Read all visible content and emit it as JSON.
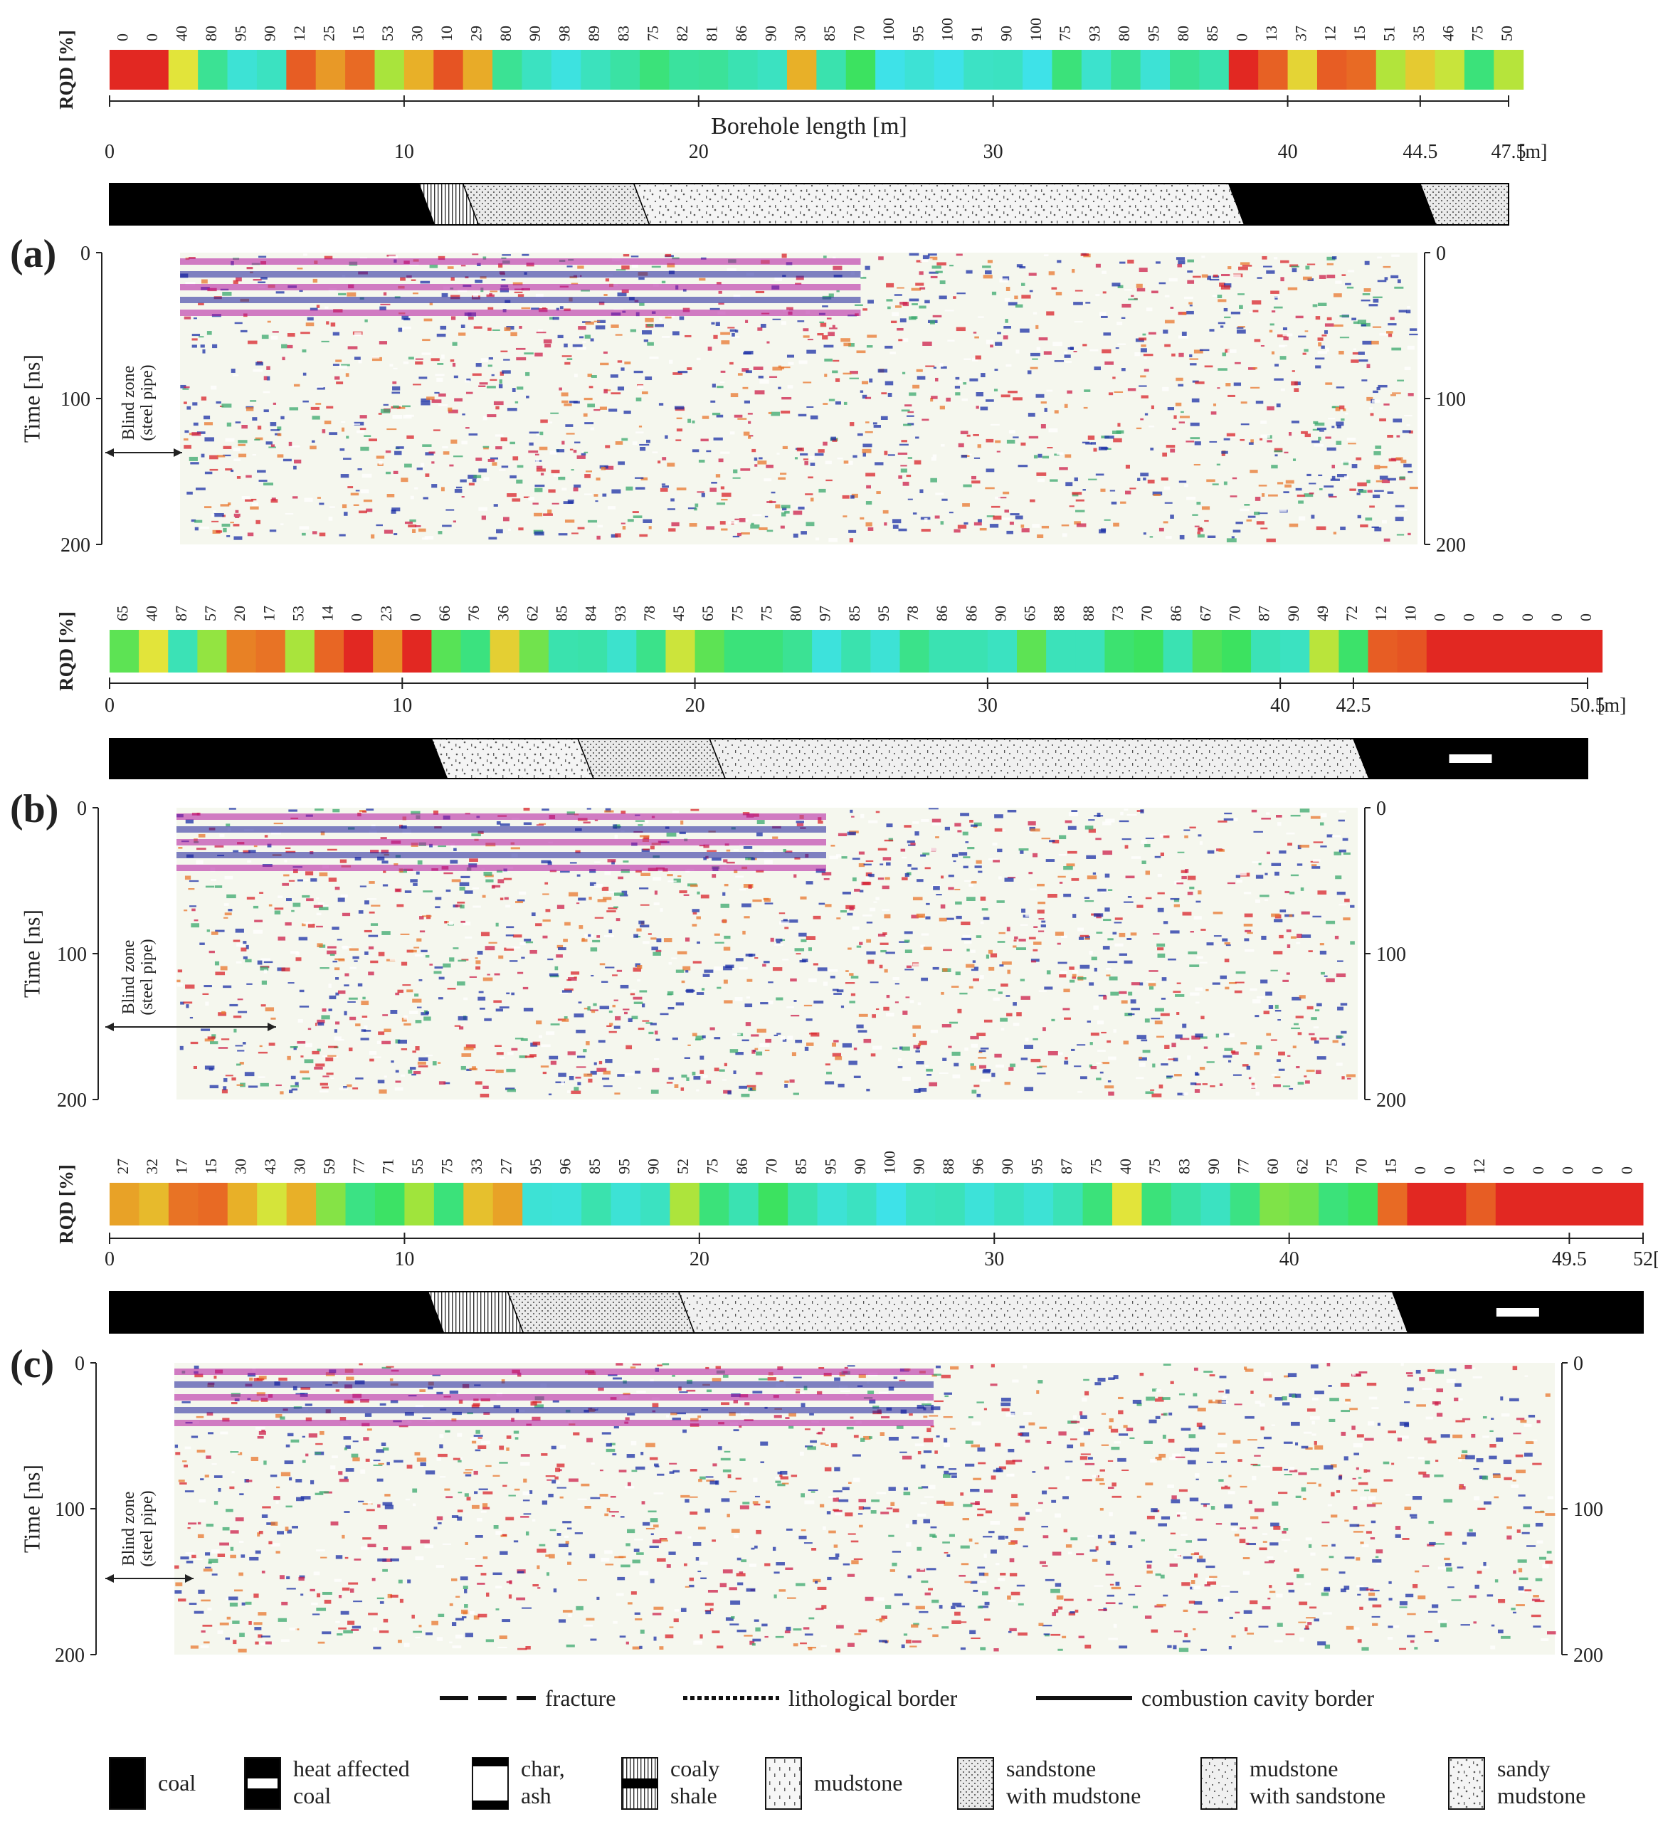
{
  "common": {
    "rqd_axis_label": "RQD [%]",
    "time_axis_label": "Time [ns]",
    "time_ticks": [
      "0",
      "100",
      "200"
    ],
    "blind_zone_line1": "Blind zone",
    "blind_zone_line2": "(steel pipe)",
    "length_unit": "[m]"
  },
  "panels": [
    {
      "id": "a",
      "label": "(a)",
      "length_axis_title": "Borehole length [m]",
      "length_end": 47.5,
      "length_ticks": [
        "0",
        "10",
        "20",
        "30",
        "40",
        "44.5",
        "47.5"
      ],
      "rqd": [
        0,
        0,
        40,
        80,
        95,
        90,
        12,
        25,
        15,
        53,
        30,
        10,
        29,
        80,
        90,
        98,
        89,
        83,
        75,
        82,
        81,
        86,
        90,
        30,
        85,
        70,
        100,
        95,
        100,
        91,
        90,
        100,
        75,
        93,
        80,
        95,
        80,
        85,
        0,
        13,
        37,
        12,
        15,
        51,
        35,
        46,
        75,
        50
      ],
      "lithology": [
        {
          "from": 0,
          "to": 10.5,
          "type": "coal"
        },
        {
          "from": 10.5,
          "to": 12.0,
          "type": "coaly shale"
        },
        {
          "from": 12.0,
          "to": 17.8,
          "type": "sandstone with mudstone"
        },
        {
          "from": 17.8,
          "to": 38.0,
          "type": "sandy mudstone"
        },
        {
          "from": 38.0,
          "to": 44.5,
          "type": "coal"
        },
        {
          "from": 44.5,
          "to": 47.5,
          "type": "sandstone with mudstone"
        }
      ]
    },
    {
      "id": "b",
      "label": "(b)",
      "length_axis_title": "",
      "length_end": 50.5,
      "length_ticks": [
        "0",
        "10",
        "20",
        "30",
        "40",
        "42.5",
        "50.5"
      ],
      "rqd": [
        65,
        40,
        87,
        57,
        20,
        17,
        53,
        14,
        0,
        23,
        0,
        66,
        76,
        36,
        62,
        85,
        84,
        93,
        78,
        45,
        65,
        75,
        75,
        80,
        97,
        85,
        95,
        78,
        86,
        86,
        90,
        65,
        88,
        88,
        73,
        70,
        86,
        67,
        70,
        87,
        90,
        49,
        72,
        12,
        10,
        0,
        0,
        0,
        0,
        0,
        0
      ],
      "lithology": [
        {
          "from": 0,
          "to": 11.0,
          "type": "coal"
        },
        {
          "from": 11.0,
          "to": 16.0,
          "type": "sandy mudstone"
        },
        {
          "from": 16.0,
          "to": 20.5,
          "type": "sandstone with mudstone"
        },
        {
          "from": 20.5,
          "to": 42.5,
          "type": "mudstone with sandstone"
        },
        {
          "from": 42.5,
          "to": 50.5,
          "type": "heat affected coal"
        }
      ]
    },
    {
      "id": "c",
      "label": "(c)",
      "length_axis_title": "",
      "length_end": 52,
      "length_ticks": [
        "0",
        "10",
        "20",
        "30",
        "40",
        "49.5",
        "52"
      ],
      "rqd": [
        27,
        32,
        17,
        15,
        30,
        43,
        30,
        59,
        77,
        71,
        55,
        75,
        33,
        27,
        95,
        96,
        85,
        95,
        90,
        52,
        75,
        86,
        70,
        85,
        95,
        90,
        100,
        90,
        88,
        96,
        90,
        95,
        87,
        75,
        40,
        75,
        83,
        90,
        77,
        60,
        62,
        75,
        70,
        15,
        0,
        0,
        12,
        0,
        0,
        0,
        0,
        0
      ],
      "lithology": [
        {
          "from": 0,
          "to": 10.8,
          "type": "coal"
        },
        {
          "from": 10.8,
          "to": 13.5,
          "type": "coaly shale"
        },
        {
          "from": 13.5,
          "to": 19.3,
          "type": "sandstone with mudstone"
        },
        {
          "from": 19.3,
          "to": 43.5,
          "type": "mudstone with sandstone"
        },
        {
          "from": 43.5,
          "to": 52,
          "type": "heat affected coal"
        }
      ]
    }
  ],
  "legend_lines": [
    {
      "style": "fracture",
      "label": "fracture"
    },
    {
      "style": "lithological",
      "label": "lithological border"
    },
    {
      "style": "cavity",
      "label": "combustion cavity border"
    }
  ],
  "legend_materials": [
    {
      "type": "coal",
      "line1": "coal",
      "line2": ""
    },
    {
      "type": "heat-affected-coal",
      "line1": "heat affected",
      "line2": "coal"
    },
    {
      "type": "char-ash",
      "line1": "char,",
      "line2": "ash"
    },
    {
      "type": "coaly-shale",
      "line1": "coaly",
      "line2": "shale"
    },
    {
      "type": "mudstone",
      "line1": "mudstone",
      "line2": ""
    },
    {
      "type": "sandstone-with-mudstone",
      "line1": "sandstone",
      "line2": "with mudstone"
    },
    {
      "type": "mudstone-with-sandstone",
      "line1": "mudstone",
      "line2": "with sandstone"
    },
    {
      "type": "sandy-mudstone",
      "line1": "sandy",
      "line2": "mudstone"
    }
  ]
}
